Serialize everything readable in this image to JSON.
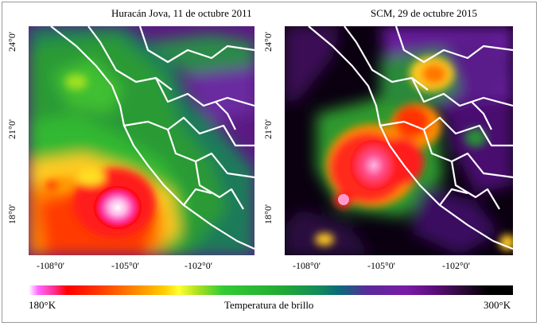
{
  "panels": [
    {
      "title": "Huracán Jova, 11 de octubre 2011"
    },
    {
      "title": "SCM, 29 de octubre 2015"
    }
  ],
  "axes": {
    "x_ticks": [
      "-108°0'",
      "-105°0'",
      "-102°0'"
    ],
    "y_ticks": [
      "24°0'",
      "21°0'",
      "18°0'"
    ]
  },
  "colorbar": {
    "min_label": "180°K",
    "max_label": "300°K",
    "title": "Temperatura de brillo"
  },
  "colors": {
    "cold_tops": "#ff66cc",
    "warm_ground": "#000000",
    "coastline": "#ffffff"
  }
}
